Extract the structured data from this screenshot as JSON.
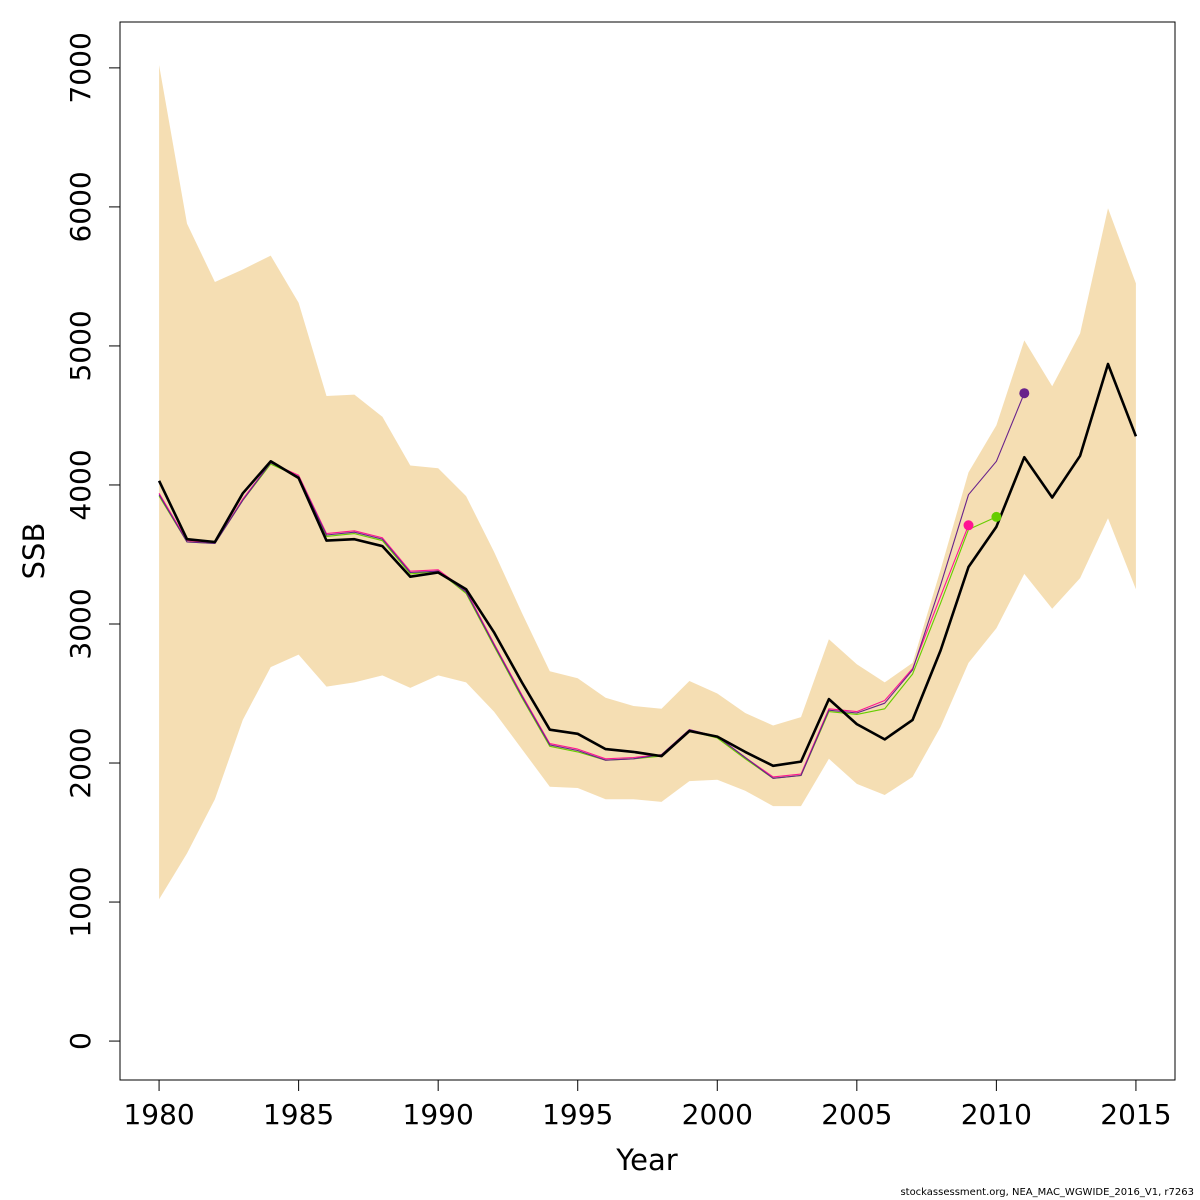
{
  "chart_data": {
    "type": "line",
    "title": "",
    "xlabel": "Year",
    "ylabel": "SSB",
    "xlim": [
      1978.6,
      2016.4
    ],
    "ylim": [
      -280,
      7330
    ],
    "xticks": [
      1980,
      1985,
      1990,
      1995,
      2000,
      2005,
      2010,
      2015
    ],
    "yticks": [
      0,
      1000,
      2000,
      3000,
      4000,
      5000,
      6000,
      7000
    ],
    "grid": false,
    "legend": "none",
    "colors": {
      "band": "#f5deb3",
      "main": "#000000",
      "retro_2009": "#ff1493",
      "retro_2010": "#66cd00",
      "retro_2011": "#68228b"
    },
    "band": {
      "x": [
        1980,
        1981,
        1982,
        1983,
        1984,
        1985,
        1986,
        1987,
        1988,
        1989,
        1990,
        1991,
        1992,
        1993,
        1994,
        1995,
        1996,
        1997,
        1998,
        1999,
        2000,
        2001,
        2002,
        2003,
        2004,
        2005,
        2006,
        2007,
        2008,
        2009,
        2010,
        2011,
        2012,
        2013,
        2014,
        2015
      ],
      "upper": [
        7020,
        5880,
        5460,
        5550,
        5650,
        5310,
        4640,
        4650,
        4490,
        4140,
        4120,
        3920,
        3520,
        3080,
        2660,
        2610,
        2470,
        2410,
        2390,
        2590,
        2500,
        2360,
        2270,
        2330,
        2890,
        2710,
        2580,
        2720,
        3390,
        4090,
        4430,
        5040,
        4710,
        5090,
        5990,
        5450
      ],
      "lower": [
        1020,
        1350,
        1740,
        2310,
        2690,
        2780,
        2550,
        2580,
        2630,
        2540,
        2630,
        2580,
        2370,
        2100,
        1830,
        1820,
        1740,
        1740,
        1720,
        1870,
        1880,
        1800,
        1690,
        1690,
        2030,
        1850,
        1770,
        1900,
        2260,
        2720,
        2970,
        3360,
        3110,
        3330,
        3760,
        3250
      ]
    },
    "series": [
      {
        "x": [
          1980,
          1981,
          1982,
          1983,
          1984,
          1985,
          1986,
          1987,
          1988,
          1989,
          1990,
          1991,
          1992,
          1993,
          1994,
          1995,
          1996,
          1997,
          1998,
          1999,
          2000,
          2001,
          2002,
          2003,
          2004,
          2005,
          2006,
          2007,
          2008,
          2009,
          2010,
          2011,
          2012,
          2013,
          2014,
          2015
        ],
        "values": [
          4030,
          3610,
          3590,
          3940,
          4170,
          4050,
          3600,
          3610,
          3560,
          3340,
          3370,
          3250,
          2940,
          2580,
          2240,
          2210,
          2100,
          2080,
          2050,
          2230,
          2190,
          2080,
          1980,
          2010,
          2460,
          2280,
          2170,
          2310,
          2810,
          3410,
          3700,
          4200,
          3910,
          4210,
          4870,
          4350
        ]
      },
      {
        "x": [
          1980,
          1981,
          1982,
          1983,
          1984,
          1985,
          1986,
          1987,
          1988,
          1989,
          1990,
          1991,
          1992,
          1993,
          1994,
          1995,
          1996,
          1997,
          1998,
          1999,
          2000,
          2001,
          2002,
          2003,
          2004,
          2005,
          2006,
          2007,
          2008,
          2009
        ],
        "values": [
          3940,
          3600,
          3580,
          3900,
          4160,
          4070,
          3650,
          3670,
          3620,
          3380,
          3390,
          3240,
          2860,
          2490,
          2140,
          2100,
          2030,
          2040,
          2060,
          2240,
          2190,
          2040,
          1900,
          1920,
          2390,
          2370,
          2450,
          2680,
          3200,
          3710
        ]
      },
      {
        "x": [
          1980,
          1981,
          1982,
          1983,
          1984,
          1985,
          1986,
          1987,
          1988,
          1989,
          1990,
          1991,
          1992,
          1993,
          1994,
          1995,
          1996,
          1997,
          1998,
          1999,
          2000,
          2001,
          2002,
          2003,
          2004,
          2005,
          2006,
          2007,
          2008,
          2009,
          2010
        ],
        "values": [
          3920,
          3590,
          3580,
          3890,
          4150,
          4060,
          3630,
          3650,
          3600,
          3360,
          3380,
          3220,
          2840,
          2470,
          2120,
          2080,
          2020,
          2030,
          2050,
          2230,
          2180,
          2030,
          1890,
          1910,
          2370,
          2350,
          2390,
          2640,
          3150,
          3680,
          3770
        ]
      },
      {
        "x": [
          1980,
          1981,
          1982,
          1983,
          1984,
          1985,
          1986,
          1987,
          1988,
          1989,
          1990,
          1991,
          1992,
          1993,
          1994,
          1995,
          1996,
          1997,
          1998,
          1999,
          2000,
          2001,
          2002,
          2003,
          2004,
          2005,
          2006,
          2007,
          2008,
          2009,
          2010,
          2011
        ],
        "values": [
          3930,
          3590,
          3580,
          3890,
          4160,
          4060,
          3640,
          3660,
          3610,
          3370,
          3380,
          3230,
          2850,
          2480,
          2130,
          2090,
          2020,
          2030,
          2060,
          2240,
          2190,
          2040,
          1890,
          1910,
          2380,
          2360,
          2430,
          2670,
          3280,
          3930,
          4170,
          4660
        ]
      }
    ]
  },
  "credit": "stockassessment.org, NEA_MAC_WGWIDE_2016_V1, r7263"
}
